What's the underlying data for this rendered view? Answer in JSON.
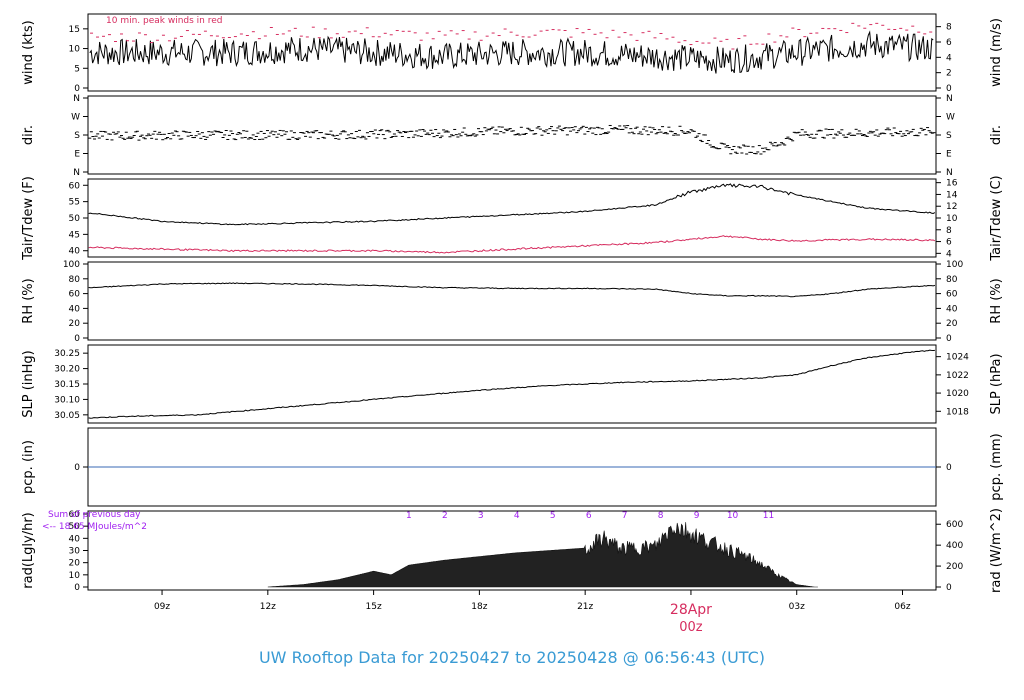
{
  "title": "UW Rooftop Data for 20250427  to  20250428 @ 06:56:43  (UTC)",
  "time_axis": {
    "ticks": [
      "09z",
      "12z",
      "15z",
      "18z",
      "21z",
      "",
      "03z",
      "06z"
    ],
    "date_label": "28Apr",
    "date_sub": "00z"
  },
  "colors": {
    "black": "#000000",
    "red": "#d62d5f",
    "blue": "#3a6ab4",
    "purple": "#a020f0",
    "title": "#3a9bd4"
  },
  "panels": [
    {
      "id": "wind",
      "ylabel_left": "wind (kts)",
      "ylabel_right": "wind (m/s)",
      "left_ticks": [
        "0",
        "5",
        "10",
        "15"
      ],
      "right_ticks": [
        "0",
        "2",
        "4",
        "6",
        "8"
      ],
      "annotation": "10 min. peak winds in red"
    },
    {
      "id": "dir",
      "ylabel_left": "dir.",
      "ylabel_right": "dir.",
      "left_ticks": [
        "N",
        "E",
        "S",
        "W",
        "N"
      ],
      "right_ticks": [
        "N",
        "E",
        "S",
        "W",
        "N"
      ]
    },
    {
      "id": "temp",
      "ylabel_left": "Tair/Tdew (F)",
      "ylabel_right": "Tair/Tdew (C)",
      "left_ticks": [
        "40",
        "45",
        "50",
        "55",
        "60"
      ],
      "right_ticks": [
        "4",
        "6",
        "8",
        "10",
        "12",
        "14",
        "16"
      ]
    },
    {
      "id": "rh",
      "ylabel_left": "RH (%)",
      "ylabel_right": "RH (%)",
      "left_ticks": [
        "0",
        "20",
        "40",
        "60",
        "80",
        "100"
      ],
      "right_ticks": [
        "0",
        "20",
        "40",
        "60",
        "80",
        "100"
      ]
    },
    {
      "id": "slp",
      "ylabel_left": "SLP (inHg)",
      "ylabel_right": "SLP (hPa)",
      "left_ticks": [
        "30.05",
        "30.10",
        "30.15",
        "30.20",
        "30.25"
      ],
      "right_ticks": [
        "1018",
        "1020",
        "1022",
        "1024"
      ]
    },
    {
      "id": "pcp",
      "ylabel_left": "pcp. (in)",
      "ylabel_right": "pcp. (mm)",
      "left_ticks": [
        "0"
      ],
      "right_ticks": [
        "0"
      ]
    },
    {
      "id": "rad",
      "ylabel_left": "rad(Lgly/hr)",
      "ylabel_right": "rad (W/m^2)",
      "left_ticks": [
        "0",
        "10",
        "20",
        "30",
        "40",
        "50",
        "60"
      ],
      "right_ticks": [
        "0",
        "200",
        "400",
        "600"
      ],
      "annotation_line1": "Sum of previous day",
      "annotation_line2": "<-- 18.65 MJoules/m^2",
      "hour_markers": [
        "1",
        "2",
        "3",
        "4",
        "5",
        "6",
        "7",
        "8",
        "9",
        "10",
        "11"
      ]
    }
  ],
  "chart_data": [
    {
      "type": "line",
      "title": "",
      "ylabel": "wind (kts)",
      "x_range_hours_utc": [
        6.9,
        30.95
      ],
      "series": [
        {
          "x": [
            7,
            9,
            11,
            13,
            15,
            17,
            19,
            21,
            23,
            25,
            27,
            29,
            30.9
          ],
          "values": [
            9,
            9,
            9,
            10,
            9,
            8,
            9,
            9,
            8,
            7,
            9,
            11,
            10
          ]
        },
        {
          "x": [
            7,
            9,
            11,
            13,
            15,
            17,
            19,
            21,
            23,
            25,
            27,
            29,
            30.9
          ],
          "values": [
            13,
            13,
            14,
            14,
            14,
            13,
            14,
            14,
            13,
            11,
            14,
            16,
            15
          ]
        }
      ],
      "ylim": [
        0,
        18
      ]
    },
    {
      "type": "scatter",
      "title": "",
      "ylabel": "dir.",
      "note": "direction hovering near S, shifting toward E around 01z-02z, then back to S-SW",
      "series": [
        {
          "x": [
            7,
            10,
            13,
            16,
            19,
            22,
            24,
            25,
            26,
            27,
            30.9
          ],
          "values": [
            "S",
            "S",
            "S",
            "S",
            "S",
            "S",
            "SSE",
            "E",
            "E",
            "S",
            "S"
          ]
        }
      ]
    },
    {
      "type": "line",
      "title": "",
      "ylabel": "Tair/Tdew (F)",
      "ylim": [
        39,
        61
      ],
      "series": [
        {
          "x": [
            7,
            9,
            11,
            13,
            15,
            17,
            19,
            21,
            23,
            24,
            25,
            26,
            27,
            28,
            29,
            30.9
          ],
          "values": [
            51.5,
            49,
            48,
            48.5,
            49,
            50,
            51,
            52,
            54,
            58,
            60,
            59.5,
            57,
            55,
            53,
            51.5
          ]
        },
        {
          "x": [
            7,
            9,
            11,
            13,
            15,
            17,
            19,
            21,
            23,
            24,
            25,
            26,
            27,
            28,
            29,
            30.9
          ],
          "values": [
            41,
            40.5,
            40,
            40,
            40,
            39.5,
            40.5,
            41.5,
            42.5,
            43.5,
            44.5,
            43.5,
            43,
            43.3,
            43.5,
            43.2
          ]
        }
      ]
    },
    {
      "type": "line",
      "title": "",
      "ylabel": "RH (%)",
      "ylim": [
        0,
        100
      ],
      "series": [
        {
          "x": [
            7,
            9,
            11,
            13,
            15,
            17,
            19,
            21,
            23,
            24,
            25,
            26,
            27,
            28,
            29,
            30.9
          ],
          "values": [
            68,
            73,
            74,
            73,
            71,
            68,
            67,
            67,
            66,
            60,
            57,
            57,
            56,
            60,
            66,
            71
          ]
        }
      ]
    },
    {
      "type": "line",
      "title": "",
      "ylabel": "SLP (inHg)",
      "ylim": [
        30.03,
        30.27
      ],
      "series": [
        {
          "x": [
            7,
            8,
            10,
            12,
            14,
            16,
            18,
            20,
            22,
            24,
            26,
            27,
            28,
            29,
            30,
            30.9
          ],
          "values": [
            30.04,
            30.045,
            30.05,
            30.07,
            30.09,
            30.11,
            30.13,
            30.145,
            30.155,
            30.16,
            30.17,
            30.18,
            30.21,
            30.235,
            30.25,
            30.26
          ]
        }
      ]
    },
    {
      "type": "line",
      "title": "",
      "ylabel": "pcp. (in)",
      "ylim": [
        -0.1,
        0.1
      ],
      "series": [
        {
          "x": [
            7,
            30.9
          ],
          "values": [
            0,
            0
          ]
        }
      ]
    },
    {
      "type": "bar",
      "title": "",
      "ylabel": "rad(Lgly/hr)",
      "ylim": [
        0,
        60
      ],
      "series": [
        {
          "x": [
            12,
            13,
            14,
            15,
            15.5,
            16,
            17,
            18,
            19,
            20,
            21,
            21.5,
            22,
            23,
            23.5,
            24,
            24.5,
            25,
            25.5,
            26,
            26.5,
            27,
            27.5
          ],
          "values": [
            0,
            2,
            6,
            13,
            10,
            18,
            22,
            25,
            28,
            30,
            32,
            44,
            34,
            36,
            55,
            48,
            40,
            34,
            28,
            20,
            10,
            2,
            0
          ]
        }
      ]
    }
  ]
}
